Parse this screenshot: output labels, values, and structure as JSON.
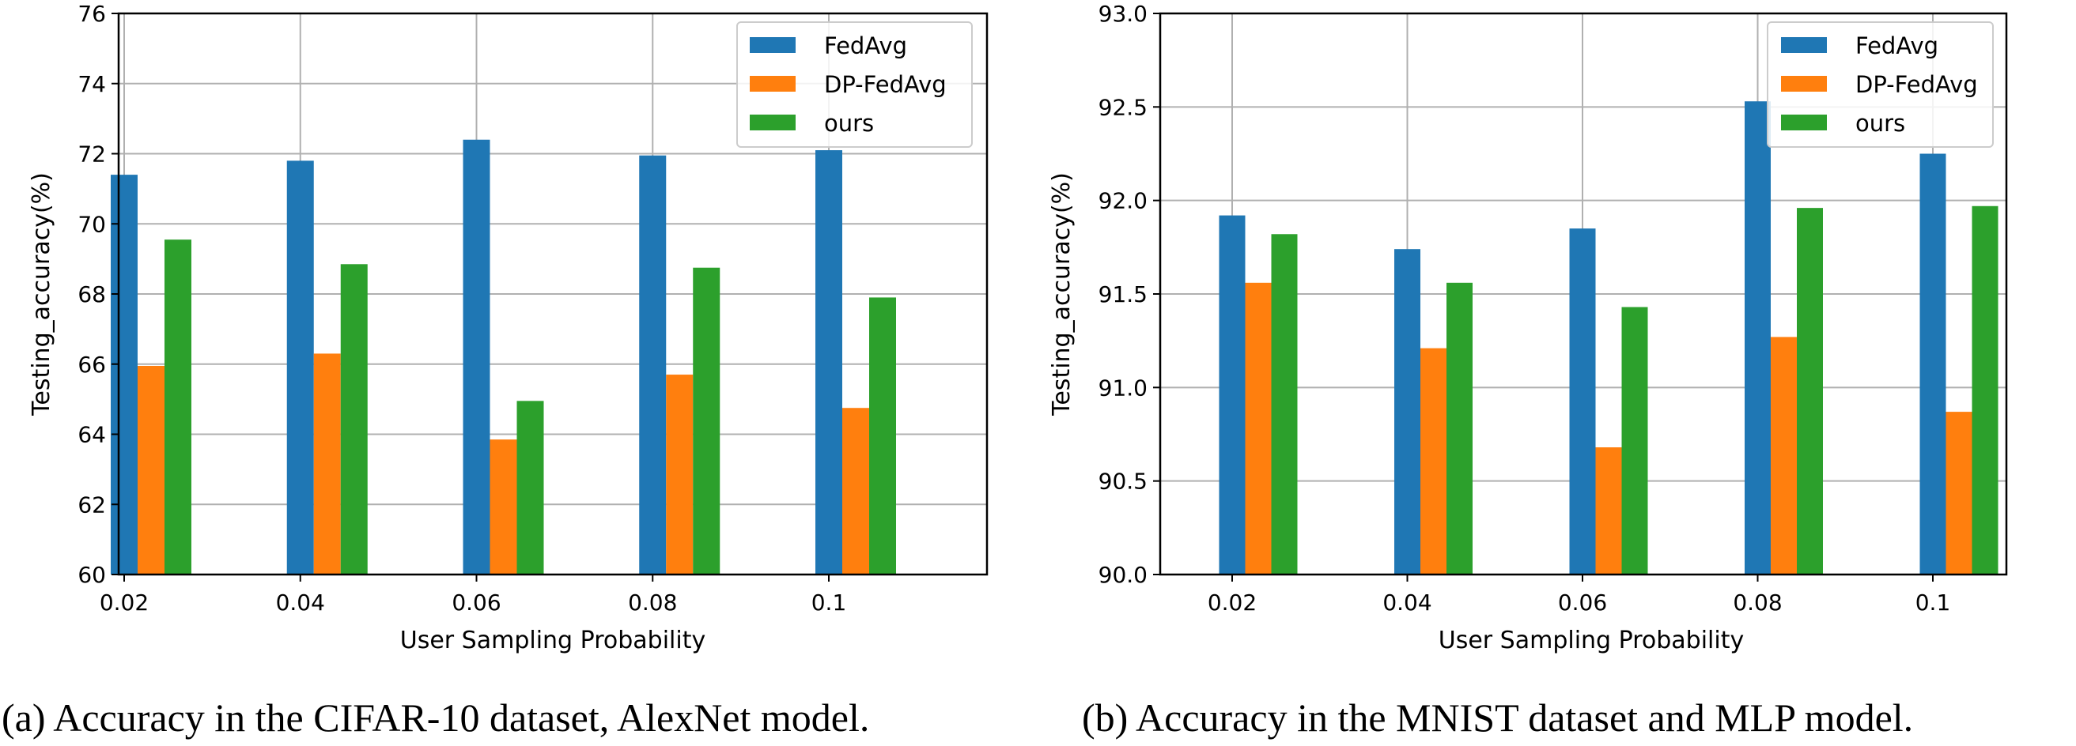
{
  "chart_data": [
    {
      "type": "bar",
      "categories": [
        "0.02",
        "0.04",
        "0.06",
        "0.08",
        "0.1"
      ],
      "series": [
        {
          "name": "FedAvg",
          "values": [
            71.4,
            71.8,
            72.4,
            71.95,
            72.1
          ]
        },
        {
          "name": "DP-FedAvg",
          "values": [
            65.95,
            66.3,
            63.85,
            65.7,
            64.75
          ]
        },
        {
          "name": "ours",
          "values": [
            69.55,
            68.85,
            64.95,
            68.75,
            67.9
          ]
        }
      ],
      "colors": [
        "#1f77b4",
        "#ff7f0e",
        "#2ca02c"
      ],
      "xlabel": "User Sampling Probability",
      "ylabel": "Testing_accuracy(%)",
      "ylim": [
        60,
        76
      ],
      "yticks": [
        "60",
        "62",
        "64",
        "66",
        "68",
        "70",
        "72",
        "74",
        "76"
      ],
      "grid": true,
      "legend": "top-right",
      "caption": "(a) Accuracy in the CIFAR-10 dataset, AlexNet model."
    },
    {
      "type": "bar",
      "categories": [
        "0.02",
        "0.04",
        "0.06",
        "0.08",
        "0.1"
      ],
      "series": [
        {
          "name": "FedAvg",
          "values": [
            91.92,
            91.74,
            91.85,
            92.53,
            92.25
          ]
        },
        {
          "name": "DP-FedAvg",
          "values": [
            91.56,
            91.21,
            90.68,
            91.27,
            90.87
          ]
        },
        {
          "name": "ours",
          "values": [
            91.82,
            91.56,
            91.43,
            91.96,
            91.97
          ]
        }
      ],
      "colors": [
        "#1f77b4",
        "#ff7f0e",
        "#2ca02c"
      ],
      "xlabel": "User Sampling Probability",
      "ylabel": "Testing_accuracy(%)",
      "ylim": [
        90.0,
        93.0
      ],
      "yticks": [
        "90.0",
        "90.5",
        "91.0",
        "91.5",
        "92.0",
        "92.5",
        "93.0"
      ],
      "grid": true,
      "legend": "top-right",
      "caption": "(b) Accuracy in the MNIST dataset and MLP model."
    }
  ]
}
